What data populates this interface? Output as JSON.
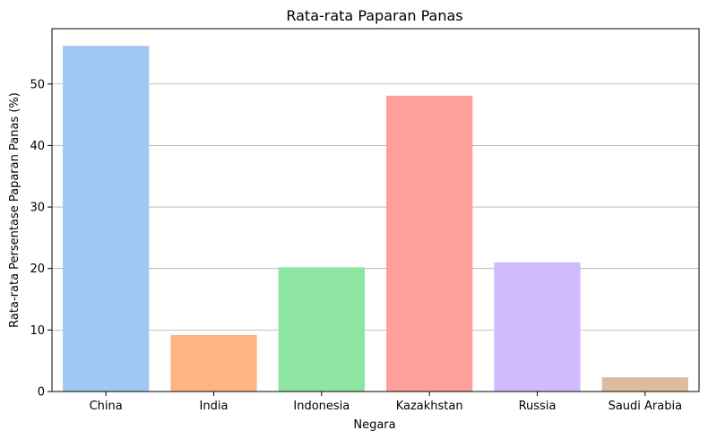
{
  "chart_data": {
    "type": "bar",
    "title": "Rata-rata Paparan Panas",
    "xlabel": "Negara",
    "ylabel": "Rata-rata Persentase Paparan Panas (%)",
    "categories": [
      "China",
      "India",
      "Indonesia",
      "Kazakhstan",
      "Russia",
      "Saudi Arabia"
    ],
    "values": [
      56.2,
      9.2,
      20.2,
      48.1,
      21.0,
      2.3
    ],
    "colors": [
      "#a1c9f4",
      "#ffb482",
      "#8de5a1",
      "#ff9f9b",
      "#d0bbff",
      "#debb9b"
    ],
    "yticks": [
      0,
      10,
      20,
      30,
      40,
      50
    ],
    "ylim": [
      0,
      59
    ],
    "grid": "horizontal"
  }
}
